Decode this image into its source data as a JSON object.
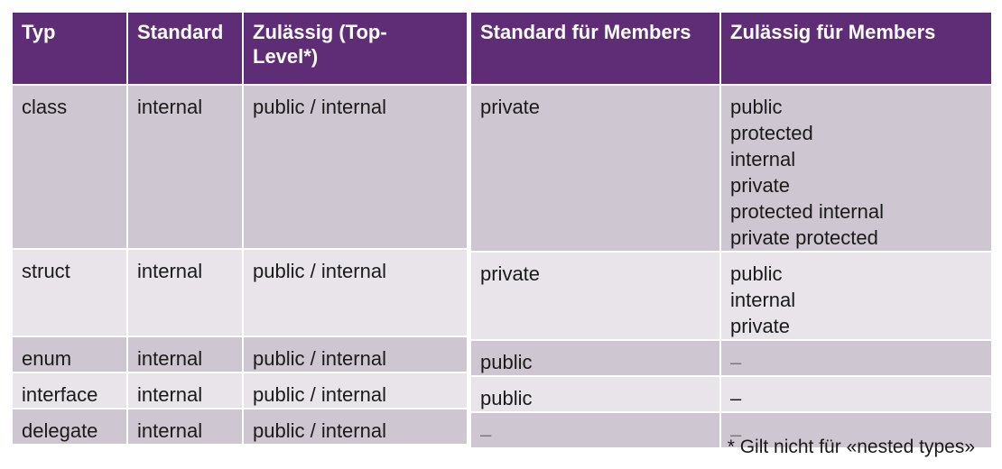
{
  "headers": {
    "typ": "Typ",
    "standard": "Standard",
    "zulaessig_top_line1": "Zulässig (Top-",
    "zulaessig_top_line2": "Level*)",
    "standard_members": "Standard für Members",
    "zulaessig_members": "Zulässig für Members"
  },
  "rows": [
    {
      "typ": "class",
      "standard": "internal",
      "zulaessig": "public / internal",
      "standard_members": "private",
      "zulaessig_members": [
        "public",
        "protected",
        "internal",
        "private",
        "protected internal",
        "private protected"
      ]
    },
    {
      "typ": "struct",
      "standard": "internal",
      "zulaessig": "public / internal",
      "standard_members": "private",
      "zulaessig_members": [
        "public",
        "internal",
        "private"
      ]
    },
    {
      "typ": "enum",
      "standard": "internal",
      "zulaessig": "public / internal",
      "standard_members": "public",
      "zulaessig_members": [
        "–"
      ]
    },
    {
      "typ": "interface",
      "standard": "internal",
      "zulaessig": "public / internal",
      "standard_members": "public",
      "zulaessig_members": [
        "–"
      ]
    },
    {
      "typ": "delegate",
      "standard": "internal",
      "zulaessig": "public / internal",
      "standard_members": "–",
      "zulaessig_members": [
        "–"
      ]
    }
  ],
  "footnote": "*  Gilt nicht für «nested types»",
  "colors": {
    "header_bg": "#5e2d75",
    "row_dark": "#cec7d2",
    "row_light": "#e8e4ea"
  }
}
